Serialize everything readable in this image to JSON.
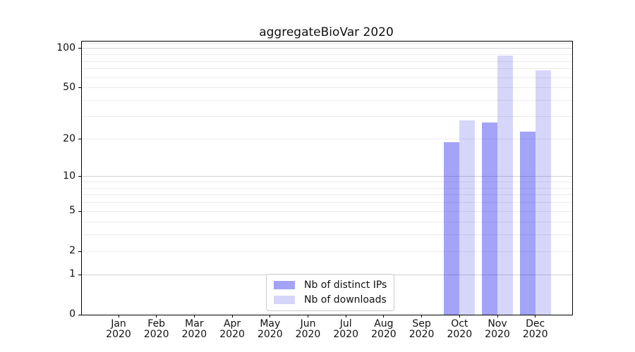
{
  "title": "aggregateBioVar 2020",
  "chart_data": {
    "type": "bar",
    "title": "aggregateBioVar 2020",
    "categories": [
      "Jan 2020",
      "Feb 2020",
      "Mar 2020",
      "Apr 2020",
      "May 2020",
      "Jun 2020",
      "Jul 2020",
      "Aug 2020",
      "Sep 2020",
      "Oct 2020",
      "Nov 2020",
      "Dec 2020"
    ],
    "x_tick_months": [
      "Jan",
      "Feb",
      "Mar",
      "Apr",
      "May",
      "Jun",
      "Jul",
      "Aug",
      "Sep",
      "Oct",
      "Nov",
      "Dec"
    ],
    "x_tick_year": "2020",
    "series": [
      {
        "name": "Nb of distinct IPs",
        "color": "rgba(0,0,232,0.36)",
        "legend_color": "#a3a3f6",
        "values": [
          0,
          0,
          0,
          0,
          0,
          0,
          0,
          0,
          0,
          19,
          27,
          23
        ]
      },
      {
        "name": "Nb of downloads",
        "color": "rgba(0,0,232,0.16)",
        "legend_color": "#d6d6fb",
        "values": [
          0,
          0,
          0,
          0,
          0,
          0,
          0,
          0,
          0,
          28,
          88,
          68
        ]
      }
    ],
    "y_ticks": [
      0,
      1,
      2,
      5,
      10,
      20,
      50,
      100
    ],
    "y_scale": "log10(value+1)",
    "ylim": [
      0,
      113
    ],
    "grid": "horizontal only",
    "minor_gridlines": [
      2,
      3,
      4,
      5,
      6,
      7,
      8,
      9,
      20,
      30,
      40,
      50,
      60,
      70,
      80,
      90,
      110
    ],
    "major_gridlines": [
      1,
      10,
      100
    ],
    "legend_position": "lower center",
    "xlabel": "",
    "ylabel": ""
  },
  "colors": {
    "bar_distinct_ips": "#a3a3f6",
    "bar_downloads": "#d6d6fb",
    "grid_minor": "#ececec",
    "grid_major": "#d2d2d2",
    "spine": "#000000",
    "text": "#111111",
    "legend_border": "#cccccc"
  }
}
